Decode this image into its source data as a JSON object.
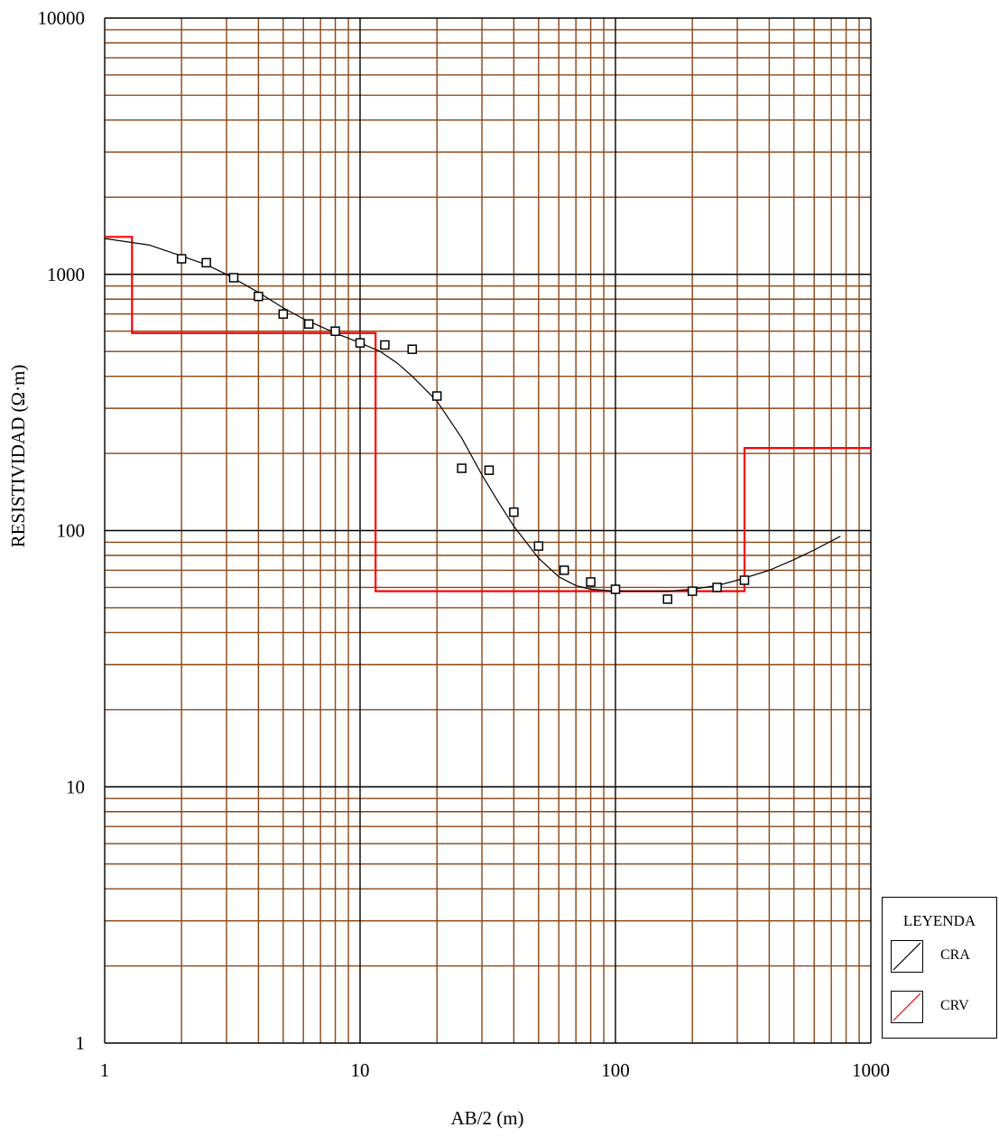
{
  "chart_data": {
    "type": "line",
    "xscale": "log",
    "yscale": "log",
    "xlim": [
      1,
      1000
    ],
    "ylim": [
      1,
      10000
    ],
    "xlabel": "AB/2 (m)",
    "ylabel": "RESISTIVIDAD (Ω·m)",
    "x_ticks": [
      1,
      10,
      100,
      1000
    ],
    "x_tick_labels": [
      "1",
      "10",
      "100",
      "1000"
    ],
    "y_ticks": [
      1,
      10,
      100,
      1000,
      10000
    ],
    "y_tick_labels": [
      "1",
      "10",
      "100",
      "1000",
      "10000"
    ],
    "grid": true,
    "colors": {
      "grid_minor": "#8B4513",
      "grid_major": "#000000",
      "cra": "#000000",
      "crv": "#FF0000",
      "points": "#000000"
    },
    "measured_points": {
      "x": [
        2,
        2.5,
        3.2,
        4,
        5,
        6.3,
        8,
        10,
        12.5,
        16,
        20,
        25,
        32,
        40,
        50,
        63,
        80,
        100,
        160,
        200,
        250,
        320
      ],
      "y": [
        1150,
        1110,
        970,
        820,
        700,
        640,
        600,
        540,
        530,
        510,
        335,
        175,
        172,
        118,
        87,
        70,
        63,
        59,
        54,
        58,
        60,
        64
      ]
    },
    "series": [
      {
        "name": "CRA",
        "x": [
          1,
          1.5,
          2,
          2.5,
          3,
          4,
          5,
          6,
          8,
          10,
          12,
          14,
          16,
          20,
          25,
          30,
          35,
          40,
          50,
          60,
          70,
          80,
          100,
          130,
          160,
          200,
          250,
          300,
          400,
          500,
          600,
          760
        ],
        "y": [
          1380,
          1300,
          1180,
          1090,
          1000,
          850,
          740,
          670,
          590,
          540,
          500,
          450,
          400,
          320,
          230,
          165,
          128,
          104,
          78,
          66,
          61,
          59,
          58,
          58,
          58,
          59,
          61,
          64,
          70,
          77,
          84,
          95
        ]
      },
      {
        "name": "CRV",
        "x": [
          1,
          1.28,
          1.28,
          11.5,
          11.5,
          320,
          320,
          1000
        ],
        "y": [
          1400,
          1400,
          590,
          590,
          58,
          58,
          210,
          210
        ]
      }
    ],
    "legend": {
      "title": "LEYENDA",
      "position": "bottom-right",
      "items": [
        "CRA",
        "CRV"
      ]
    }
  }
}
